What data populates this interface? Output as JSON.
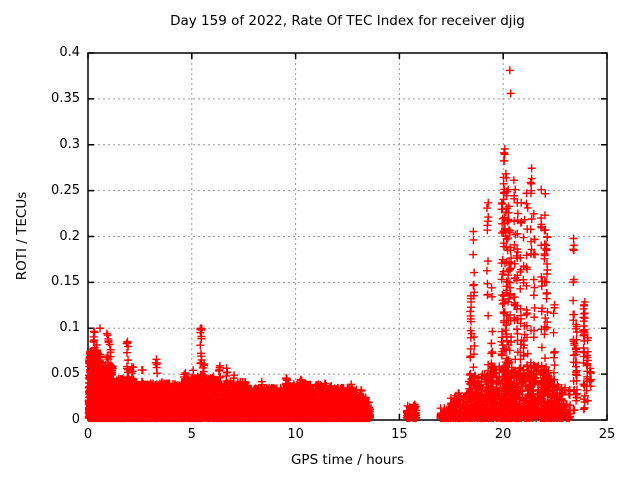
{
  "chart_data": {
    "type": "scatter",
    "title": "Day 159 of 2022, Rate Of TEC Index for receiver djig",
    "xlabel": "GPS time / hours",
    "ylabel": "ROTI / TECUs",
    "xlim": [
      0,
      25
    ],
    "ylim": [
      0,
      0.4
    ],
    "xticks": [
      0,
      5,
      10,
      15,
      20,
      25
    ],
    "xtick_labels": [
      "0",
      "5",
      "10",
      "15",
      "20",
      "25"
    ],
    "yticks": [
      0,
      0.05,
      0.1,
      0.15,
      0.2,
      0.25,
      0.3,
      0.35,
      0.4
    ],
    "ytick_labels": [
      "0",
      "0.05",
      "0.1",
      "0.15",
      "0.2",
      "0.25",
      "0.3",
      "0.35",
      "0.4"
    ],
    "grid": true,
    "grid_color": "#9a9a9a",
    "frame_color": "#000000",
    "marker": "plus",
    "marker_color": "#ff0000",
    "legend": "none",
    "dense_bands": [
      {
        "t0": 0.03,
        "t1": 0.6,
        "n": 650,
        "vmax": 0.075
      },
      {
        "t0": 0.6,
        "t1": 1.2,
        "n": 520,
        "vmax": 0.06
      },
      {
        "t0": 1.2,
        "t1": 2.4,
        "n": 750,
        "vmax": 0.045
      },
      {
        "t0": 2.4,
        "t1": 4.6,
        "n": 1200,
        "vmax": 0.04
      },
      {
        "t0": 4.6,
        "t1": 6.1,
        "n": 750,
        "vmax": 0.048
      },
      {
        "t0": 6.1,
        "t1": 7.7,
        "n": 800,
        "vmax": 0.042
      },
      {
        "t0": 7.7,
        "t1": 9.5,
        "n": 850,
        "vmax": 0.035
      },
      {
        "t0": 9.5,
        "t1": 11.5,
        "n": 950,
        "vmax": 0.04
      },
      {
        "t0": 11.5,
        "t1": 12.95,
        "n": 700,
        "vmax": 0.035
      },
      {
        "t0": 12.95,
        "t1": 13.4,
        "n": 170,
        "vmax": 0.026
      },
      {
        "t0": 13.4,
        "t1": 13.6,
        "n": 45,
        "vmax": 0.02
      },
      {
        "t0": 15.35,
        "t1": 15.52,
        "n": 35,
        "vmax": 0.016
      },
      {
        "t0": 15.65,
        "t1": 15.82,
        "n": 35,
        "vmax": 0.018
      },
      {
        "t0": 16.95,
        "t1": 17.45,
        "n": 50,
        "vmax": 0.015
      },
      {
        "t0": 17.45,
        "t1": 18.35,
        "n": 140,
        "vmax": 0.03
      },
      {
        "t0": 18.35,
        "t1": 19.35,
        "n": 220,
        "vmax": 0.05
      },
      {
        "t0": 19.35,
        "t1": 22.3,
        "n": 700,
        "vmax": 0.06
      },
      {
        "t0": 22.3,
        "t1": 23.25,
        "n": 110,
        "vmax": 0.04
      }
    ],
    "spikes": [
      {
        "t": 0.3,
        "vmax": 0.098,
        "n": 26
      },
      {
        "t": 0.42,
        "vmax": 0.088,
        "n": 14
      },
      {
        "t": 0.95,
        "vmax": 0.095,
        "n": 20
      },
      {
        "t": 1.08,
        "vmax": 0.083,
        "n": 12
      },
      {
        "t": 1.9,
        "vmax": 0.089,
        "n": 18
      },
      {
        "t": 2.15,
        "vmax": 0.058,
        "n": 10
      },
      {
        "t": 2.6,
        "vmax": 0.055,
        "n": 9
      },
      {
        "t": 3.3,
        "vmax": 0.068,
        "n": 14
      },
      {
        "t": 3.55,
        "vmax": 0.058,
        "n": 8
      },
      {
        "t": 4.65,
        "vmax": 0.053,
        "n": 10
      },
      {
        "t": 5.1,
        "vmax": 0.058,
        "n": 9
      },
      {
        "t": 5.45,
        "vmax": 0.102,
        "n": 24
      },
      {
        "t": 5.58,
        "vmax": 0.078,
        "n": 10
      },
      {
        "t": 6.35,
        "vmax": 0.063,
        "n": 12
      },
      {
        "t": 6.7,
        "vmax": 0.058,
        "n": 10
      },
      {
        "t": 7.05,
        "vmax": 0.05,
        "n": 8
      },
      {
        "t": 8.35,
        "vmax": 0.042,
        "n": 8
      },
      {
        "t": 9.55,
        "vmax": 0.046,
        "n": 10
      },
      {
        "t": 10.25,
        "vmax": 0.044,
        "n": 8
      },
      {
        "t": 10.6,
        "vmax": 0.04,
        "n": 7
      },
      {
        "t": 11.7,
        "vmax": 0.038,
        "n": 7
      },
      {
        "t": 12.7,
        "vmax": 0.04,
        "n": 8
      },
      {
        "t": 13.15,
        "vmax": 0.034,
        "n": 6
      }
    ],
    "streaks": [
      {
        "t": 18.45,
        "v0": 0.02,
        "v1": 0.155,
        "n": 20
      },
      {
        "t": 18.58,
        "v0": 0.05,
        "v1": 0.21,
        "n": 12
      },
      {
        "t": 19.25,
        "v0": 0.03,
        "v1": 0.24,
        "n": 16
      },
      {
        "t": 19.45,
        "v0": 0.02,
        "v1": 0.18,
        "n": 13
      },
      {
        "t": 19.95,
        "v0": 0.02,
        "v1": 0.25,
        "n": 26
      },
      {
        "t": 20.05,
        "v0": 0.03,
        "v1": 0.3,
        "n": 30
      },
      {
        "t": 20.15,
        "v0": 0.02,
        "v1": 0.27,
        "n": 30
      },
      {
        "t": 20.25,
        "v0": 0.04,
        "v1": 0.26,
        "n": 26
      },
      {
        "t": 20.35,
        "v0": 0.02,
        "v1": 0.22,
        "n": 20
      },
      {
        "t": 20.55,
        "v0": 0.03,
        "v1": 0.28,
        "n": 22
      },
      {
        "t": 20.68,
        "v0": 0.02,
        "v1": 0.24,
        "n": 20
      },
      {
        "t": 20.85,
        "v0": 0.04,
        "v1": 0.26,
        "n": 18
      },
      {
        "t": 21.0,
        "v0": 0.02,
        "v1": 0.22,
        "n": 18
      },
      {
        "t": 21.15,
        "v0": 0.03,
        "v1": 0.25,
        "n": 16
      },
      {
        "t": 21.35,
        "v0": 0.05,
        "v1": 0.28,
        "n": 14
      },
      {
        "t": 21.5,
        "v0": 0.02,
        "v1": 0.23,
        "n": 16
      },
      {
        "t": 21.85,
        "v0": 0.02,
        "v1": 0.27,
        "n": 20
      },
      {
        "t": 22.0,
        "v0": 0.05,
        "v1": 0.25,
        "n": 15
      },
      {
        "t": 22.1,
        "v0": 0.01,
        "v1": 0.2,
        "n": 18
      },
      {
        "t": 22.45,
        "v0": 0.01,
        "v1": 0.13,
        "n": 16
      },
      {
        "t": 23.4,
        "v0": 0.01,
        "v1": 0.21,
        "n": 22
      },
      {
        "t": 23.52,
        "v0": 0.02,
        "v1": 0.105,
        "n": 26
      },
      {
        "t": 23.9,
        "v0": 0.01,
        "v1": 0.13,
        "n": 32
      },
      {
        "t": 24.05,
        "v0": 0.02,
        "v1": 0.09,
        "n": 16
      },
      {
        "t": 24.2,
        "v0": 0.03,
        "v1": 0.07,
        "n": 8
      }
    ],
    "isolated_points": [
      [
        0.58,
        0.1
      ],
      [
        20.32,
        0.381
      ],
      [
        20.36,
        0.356
      ]
    ]
  }
}
